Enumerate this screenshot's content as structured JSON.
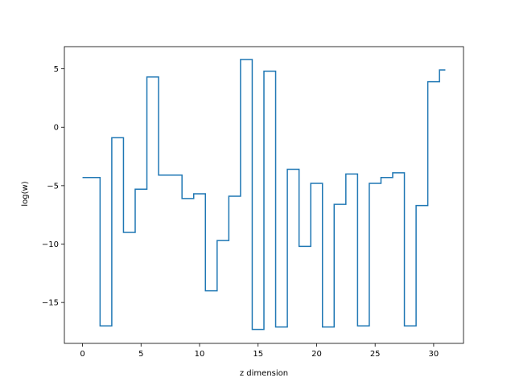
{
  "chart_data": {
    "type": "line",
    "step": "mid",
    "title": "",
    "xlabel": "z dimension",
    "ylabel": "log(w)",
    "xlim": [
      -1.55,
      32.55
    ],
    "ylim": [
      -18.5,
      6.9
    ],
    "xticks": [
      0,
      5,
      10,
      15,
      20,
      25,
      30
    ],
    "yticks": [
      -15,
      -10,
      -5,
      0,
      5
    ],
    "grid": false,
    "series": [
      {
        "color": "#1f77b4",
        "x": [
          0,
          1,
          2,
          3,
          4,
          5,
          6,
          7,
          8,
          9,
          10,
          11,
          12,
          13,
          14,
          15,
          16,
          17,
          18,
          19,
          20,
          21,
          22,
          23,
          24,
          25,
          26,
          27,
          28,
          29,
          30,
          31
        ],
        "values": [
          -4.3,
          -4.3,
          -17.0,
          -0.9,
          -9.0,
          -5.3,
          4.3,
          -4.1,
          -4.1,
          -6.1,
          -5.7,
          -14.0,
          -9.7,
          -5.9,
          5.8,
          -17.3,
          4.8,
          -17.1,
          -3.6,
          -10.2,
          -4.8,
          -17.1,
          -6.6,
          -4.0,
          -17.0,
          -4.8,
          -4.3,
          -3.9,
          -17.0,
          -6.7,
          3.9,
          4.9
        ]
      }
    ]
  }
}
